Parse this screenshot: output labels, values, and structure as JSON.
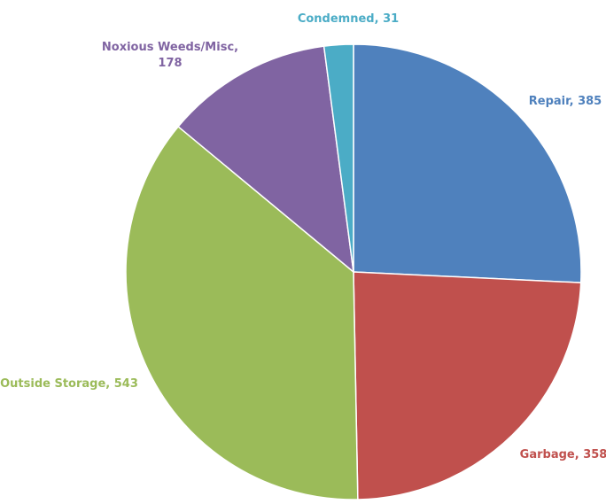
{
  "chart_data": {
    "type": "pie",
    "title": "",
    "start_angle_deg": 0,
    "direction": "clockwise",
    "slices": [
      {
        "label": "Repair",
        "value": 385,
        "color": "#4F81BD",
        "data_label": "Repair, 385"
      },
      {
        "label": "Garbage",
        "value": 358,
        "color": "#C0504D",
        "data_label": "Garbage, 358"
      },
      {
        "label": "Outside Storage",
        "value": 543,
        "color": "#9BBB59",
        "data_label": "Outside Storage, 543"
      },
      {
        "label": "Noxious Weeds/Misc",
        "value": 178,
        "color": "#8064A2",
        "data_label_lines": [
          "Noxious Weeds/Misc,",
          "178"
        ]
      },
      {
        "label": "Condemned",
        "value": 31,
        "color": "#4BACC6",
        "data_label": "Condemned, 31"
      }
    ],
    "legend": "none",
    "grid": false
  }
}
